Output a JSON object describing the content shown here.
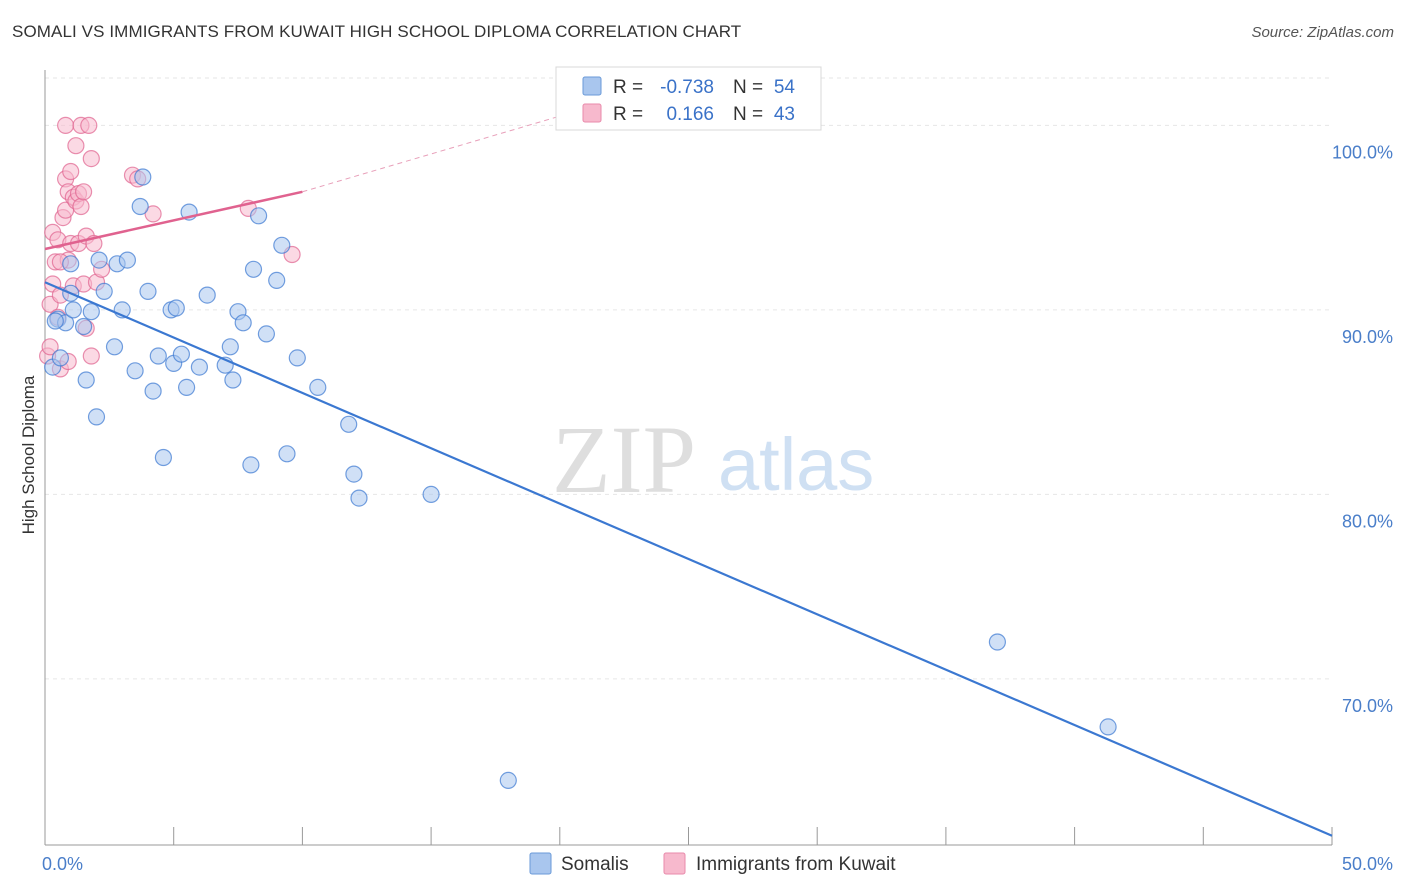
{
  "title": "SOMALI VS IMMIGRANTS FROM KUWAIT HIGH SCHOOL DIPLOMA CORRELATION CHART",
  "source": "Source: ZipAtlas.com",
  "watermark": {
    "zip": "ZIP",
    "atlas": "atlas"
  },
  "chart_data": {
    "type": "scatter",
    "title": "SOMALI VS IMMIGRANTS FROM KUWAIT HIGH SCHOOL DIPLOMA CORRELATION CHART",
    "xlabel": "",
    "ylabel": "High School Diploma",
    "xlim": [
      0,
      50
    ],
    "ylim": [
      61,
      103
    ],
    "x_tick_labels": [
      "0.0%",
      "50.0%"
    ],
    "y_ticks": [
      70,
      80,
      90,
      100
    ],
    "y_tick_labels": [
      "70.0%",
      "80.0%",
      "90.0%",
      "100.0%"
    ],
    "legend_stats": [
      {
        "r_label": "R =",
        "r_value": "-0.738",
        "n_label": "N =",
        "n_value": "54"
      },
      {
        "r_label": "R =",
        "r_value": "0.166",
        "n_label": "N =",
        "n_value": "43"
      }
    ],
    "series": [
      {
        "name": "Somalis",
        "color": "#3b78d1",
        "fill": "#a9c6ee",
        "trend": {
          "x0": 0,
          "y0": 91.5,
          "x1": 50,
          "y1": 61.5
        },
        "points": [
          [
            0.3,
            86.9
          ],
          [
            0.5,
            89.5
          ],
          [
            0.6,
            87.4
          ],
          [
            0.8,
            89.3
          ],
          [
            1.0,
            90.9
          ],
          [
            1.1,
            90.0
          ],
          [
            1.0,
            92.5
          ],
          [
            1.5,
            89.1
          ],
          [
            1.6,
            86.2
          ],
          [
            1.8,
            89.9
          ],
          [
            2.0,
            84.2
          ],
          [
            2.1,
            92.7
          ],
          [
            2.3,
            91.0
          ],
          [
            2.7,
            88.0
          ],
          [
            2.8,
            92.5
          ],
          [
            3.0,
            90.0
          ],
          [
            3.2,
            92.7
          ],
          [
            3.5,
            86.7
          ],
          [
            3.7,
            95.6
          ],
          [
            3.8,
            97.2
          ],
          [
            4.0,
            91.0
          ],
          [
            4.2,
            85.6
          ],
          [
            4.4,
            87.5
          ],
          [
            4.6,
            82.0
          ],
          [
            4.9,
            90.0
          ],
          [
            5.0,
            87.1
          ],
          [
            5.1,
            90.1
          ],
          [
            5.3,
            87.6
          ],
          [
            5.5,
            85.8
          ],
          [
            5.6,
            95.3
          ],
          [
            6.0,
            86.9
          ],
          [
            6.3,
            90.8
          ],
          [
            7.0,
            87.0
          ],
          [
            7.2,
            88.0
          ],
          [
            7.3,
            86.2
          ],
          [
            7.5,
            89.9
          ],
          [
            7.7,
            89.3
          ],
          [
            8.0,
            81.6
          ],
          [
            8.1,
            92.2
          ],
          [
            8.3,
            95.1
          ],
          [
            8.6,
            88.7
          ],
          [
            9.0,
            91.6
          ],
          [
            9.2,
            93.5
          ],
          [
            9.4,
            82.2
          ],
          [
            9.8,
            87.4
          ],
          [
            10.6,
            85.8
          ],
          [
            11.8,
            83.8
          ],
          [
            12.0,
            81.1
          ],
          [
            12.2,
            79.8
          ],
          [
            15.0,
            80.0
          ],
          [
            18.0,
            64.5
          ],
          [
            37.0,
            72.0
          ],
          [
            41.3,
            67.4
          ],
          [
            0.4,
            89.4
          ]
        ]
      },
      {
        "name": "Immigrants from Kuwait",
        "color": "#e0628f",
        "fill": "#f7b9cd",
        "trend": {
          "x0": 0,
          "y0": 93.3,
          "x1": 10,
          "y1": 96.4
        },
        "trend_extension": {
          "x0": 10,
          "y0": 96.4,
          "x1": 20,
          "y1": 100.5
        },
        "points": [
          [
            0.1,
            87.5
          ],
          [
            0.2,
            90.3
          ],
          [
            0.3,
            91.4
          ],
          [
            0.3,
            94.2
          ],
          [
            0.4,
            92.6
          ],
          [
            0.5,
            93.8
          ],
          [
            0.5,
            89.6
          ],
          [
            0.6,
            90.8
          ],
          [
            0.6,
            86.8
          ],
          [
            0.7,
            95.0
          ],
          [
            0.8,
            95.4
          ],
          [
            0.8,
            97.1
          ],
          [
            0.8,
            100.0
          ],
          [
            0.9,
            96.4
          ],
          [
            0.9,
            87.2
          ],
          [
            0.9,
            92.7
          ],
          [
            1.0,
            97.5
          ],
          [
            1.0,
            93.6
          ],
          [
            1.1,
            91.3
          ],
          [
            1.1,
            96.1
          ],
          [
            1.2,
            98.9
          ],
          [
            1.2,
            95.9
          ],
          [
            1.3,
            96.3
          ],
          [
            1.3,
            93.6
          ],
          [
            1.4,
            95.6
          ],
          [
            1.4,
            100.0
          ],
          [
            1.5,
            96.4
          ],
          [
            1.5,
            91.4
          ],
          [
            1.6,
            94.0
          ],
          [
            1.6,
            89.0
          ],
          [
            1.7,
            100.0
          ],
          [
            1.8,
            98.2
          ],
          [
            1.8,
            87.5
          ],
          [
            1.9,
            93.6
          ],
          [
            2.0,
            91.5
          ],
          [
            2.2,
            92.2
          ],
          [
            3.4,
            97.3
          ],
          [
            3.6,
            97.1
          ],
          [
            4.2,
            95.2
          ],
          [
            7.9,
            95.5
          ],
          [
            9.6,
            93.0
          ],
          [
            0.2,
            88.0
          ],
          [
            0.6,
            92.6
          ]
        ]
      }
    ]
  },
  "legend": {
    "somalis_label": "Somalis",
    "kuwait_label": "Immigrants from Kuwait"
  }
}
